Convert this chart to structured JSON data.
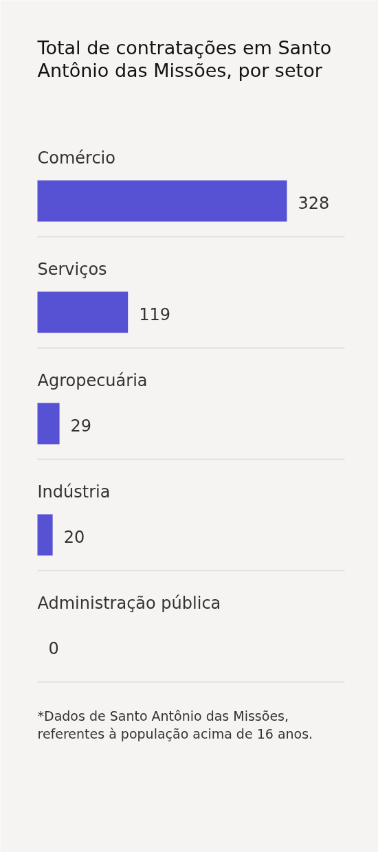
{
  "chart_data": {
    "type": "bar",
    "orientation": "horizontal",
    "title": "Total de contratações em Santo Antônio das Missões, por setor",
    "categories": [
      "Comércio",
      "Serviços",
      "Agropecuária",
      "Indústria",
      "Administração pública"
    ],
    "values": [
      328,
      119,
      29,
      20,
      0
    ],
    "color": "#5751d4",
    "data_labels": true,
    "grid": "y",
    "annotations": [
      "*Dados de Santo Antônio das Missões, referentes à população acima de 16 anos."
    ]
  }
}
